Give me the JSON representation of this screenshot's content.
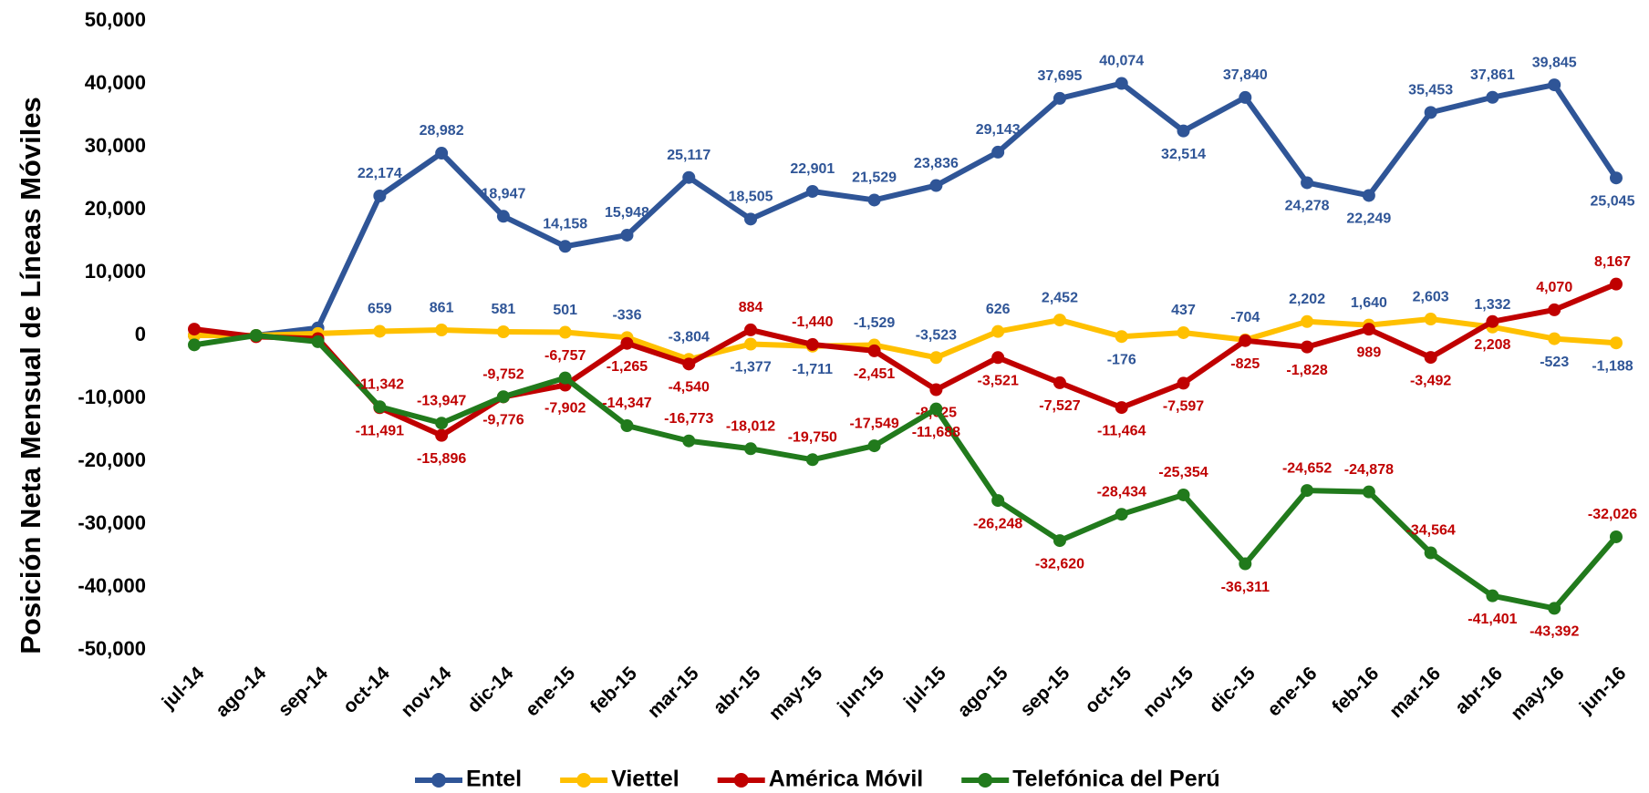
{
  "chart_data": {
    "type": "line",
    "y_label": "Posición Neta Mensual de Líneas Móviles",
    "categories": [
      "jul-14",
      "ago-14",
      "sep-14",
      "oct-14",
      "nov-14",
      "dic-14",
      "ene-15",
      "feb-15",
      "mar-15",
      "abr-15",
      "may-15",
      "jun-15",
      "jul-15",
      "ago-15",
      "sep-15",
      "oct-15",
      "nov-15",
      "dic-15",
      "ene-16",
      "feb-16",
      "mar-16",
      "abr-16",
      "may-16",
      "jun-16"
    ],
    "series": [
      {
        "name": "Entel",
        "color": "#2f5597",
        "label_color": "#2f5597",
        "values": [
          0,
          0,
          1200,
          22174,
          28982,
          18947,
          14158,
          15948,
          25117,
          18505,
          22901,
          21529,
          23836,
          29143,
          37695,
          40074,
          32514,
          37840,
          24278,
          22249,
          35453,
          37861,
          39845,
          25045
        ],
        "value_labels": [
          null,
          null,
          null,
          "22,174",
          "28,982",
          "18,947",
          "14,158",
          "15,948",
          "25,117",
          "18,505",
          "22,901",
          "21,529",
          "23,836",
          "29,143",
          "37,695",
          "40,074",
          "32,514",
          "37,840",
          "24,278",
          "22,249",
          "35,453",
          "37,861",
          "39,845",
          "25,045"
        ]
      },
      {
        "name": "Viettel",
        "color": "#ffc000",
        "label_color": "#2f5597",
        "values": [
          0,
          0,
          300,
          659,
          861,
          581,
          501,
          -336,
          -3804,
          -1377,
          -1711,
          -1529,
          -3523,
          626,
          2452,
          -176,
          437,
          -704,
          2202,
          1640,
          2603,
          1332,
          -523,
          -1188
        ],
        "value_labels": [
          null,
          null,
          null,
          "659",
          "861",
          "581",
          "501",
          "-336",
          "-3,804",
          "-1,377",
          "-1,711",
          "-1,529",
          "-3,523",
          "626",
          "2,452",
          "-176",
          "437",
          "-704",
          "2,202",
          "1,640",
          "2,603",
          "1,332",
          "-523",
          "-1,188"
        ]
      },
      {
        "name": "América Móvil",
        "color": "#c00000",
        "label_color": "#c00000",
        "values": [
          1000,
          -200,
          -500,
          -11491,
          -15896,
          -9776,
          -7902,
          -1265,
          -4540,
          884,
          -1440,
          -2451,
          -8625,
          -3521,
          -7527,
          -11464,
          -7597,
          -825,
          -1828,
          989,
          -3492,
          2208,
          4070,
          8167
        ],
        "value_labels": [
          null,
          null,
          null,
          "-11,491",
          "-15,896",
          "-9,776",
          "-7,902",
          "-1,265",
          "-4,540",
          "884",
          "-1,440",
          "-2,451",
          "-8,625",
          "-3,521",
          "-7,527",
          "-11,464",
          "-7,597",
          "-825",
          "-1,828",
          "989",
          "-3,492",
          "2,208",
          "4,070",
          "8,167"
        ]
      },
      {
        "name": "Telefónica del Perú",
        "color": "#217a1c",
        "label_color": "#c00000",
        "values": [
          -1500,
          0,
          -1000,
          -11342,
          -13947,
          -9752,
          -6757,
          -14347,
          -16773,
          -18012,
          -19750,
          -17549,
          -11688,
          -26248,
          -32620,
          -28434,
          -25354,
          -36311,
          -24652,
          -24878,
          -34564,
          -41401,
          -43392,
          -32026
        ],
        "value_labels": [
          null,
          null,
          null,
          "-11,342",
          "-13,947",
          "-9,752",
          "-6,757",
          "-14,347",
          "-16,773",
          "-18,012",
          "-19,750",
          "-17,549",
          "-11,688",
          "-26,248",
          "-32,620",
          "-28,434",
          "-25,354",
          "-36,311",
          "-24,652",
          "-24,878",
          "-34,564",
          "-41,401",
          "-43,392",
          "-32,026"
        ]
      }
    ],
    "ylim": [
      -50000,
      50000
    ],
    "yticks": [
      {
        "value": -50000,
        "label": "-50,000"
      },
      {
        "value": -40000,
        "label": "-40,000"
      },
      {
        "value": -30000,
        "label": "-30,000"
      },
      {
        "value": -20000,
        "label": "-20,000"
      },
      {
        "value": -10000,
        "label": "-10,000"
      },
      0,
      {
        "value": 10000,
        "label": "10,000"
      },
      {
        "value": 20000,
        "label": "20,000"
      },
      {
        "value": 30000,
        "label": "30,000"
      },
      {
        "value": 40000,
        "label": "40,000"
      },
      {
        "value": 50000,
        "label": "50,000"
      }
    ],
    "grid": false,
    "legend": "bottom"
  }
}
